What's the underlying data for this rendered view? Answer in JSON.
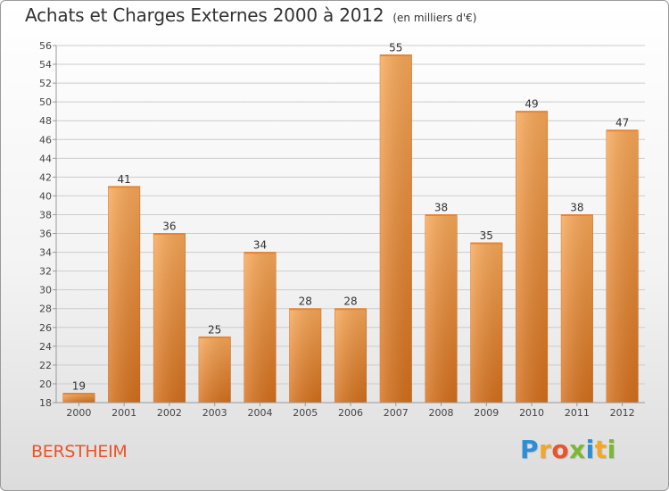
{
  "header": {
    "title": "Achats et Charges Externes 2000 à 2012",
    "subtitle": "(en milliers d'€)"
  },
  "footer": {
    "place": "BERSTHEIM",
    "brand_letters": [
      "P",
      "r",
      "o",
      "x",
      "i",
      "t",
      "i"
    ],
    "brand_colors": [
      "#2a8fd6",
      "#f5a623",
      "#e8552a",
      "#7cb832",
      "#2a8fd6",
      "#f5a623",
      "#7cb832"
    ]
  },
  "chart_data": {
    "type": "bar",
    "categories": [
      "2000",
      "2001",
      "2002",
      "2003",
      "2004",
      "2005",
      "2006",
      "2007",
      "2008",
      "2009",
      "2010",
      "2011",
      "2012"
    ],
    "values": [
      19,
      41,
      36,
      25,
      34,
      28,
      28,
      55,
      38,
      35,
      49,
      38,
      47
    ],
    "data_labels": [
      "19",
      "41",
      "36",
      "25",
      "34",
      "28",
      "28",
      "55",
      "38",
      "35",
      "49",
      "38",
      "47"
    ],
    "yticks": [
      "18",
      "20",
      "22",
      "24",
      "26",
      "28",
      "30",
      "32",
      "34",
      "36",
      "38",
      "40",
      "42",
      "44",
      "46",
      "48",
      "50",
      "52",
      "54",
      "56"
    ],
    "ylim": [
      18,
      56
    ],
    "ytick_step": 2,
    "grid": true,
    "colors": {
      "bar_light": "#f7a553",
      "bar_dark": "#d8731e",
      "grid": "#cccccc",
      "axis": "#999999"
    }
  }
}
